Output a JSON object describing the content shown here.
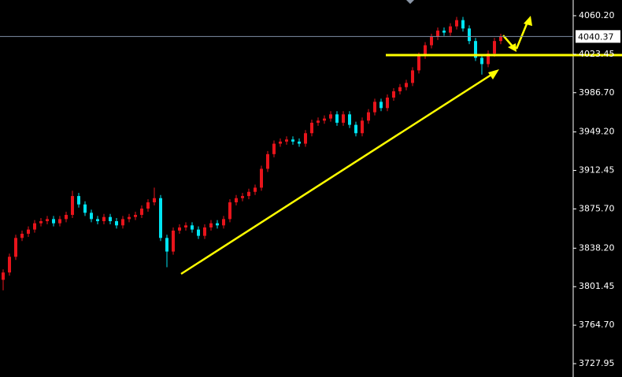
{
  "chart_data": {
    "type": "candlestick",
    "up_color": "#e8141b",
    "down_color": "#00e4f2",
    "open": [
      3808,
      3815,
      3830,
      3848,
      3852,
      3856,
      3862,
      3864,
      3866,
      3862,
      3866,
      3870,
      3888,
      3880,
      3872,
      3866,
      3864,
      3868,
      3864,
      3860,
      3866,
      3868,
      3870,
      3876,
      3882,
      3886,
      3848,
      3835,
      3855,
      3858,
      3860,
      3856,
      3850,
      3858,
      3862,
      3860,
      3866,
      3882,
      3886,
      3888,
      3892,
      3896,
      3914,
      3928,
      3938,
      3940,
      3942,
      3940,
      3938,
      3948,
      3958,
      3960,
      3962,
      3966,
      3958,
      3966,
      3956,
      3948,
      3960,
      3968,
      3978,
      3972,
      3982,
      3988,
      3992,
      3996,
      4008,
      4022,
      4032,
      4040,
      4046,
      4044,
      4050,
      4056,
      4048,
      4036,
      4020,
      4014,
      4024,
      4036
    ],
    "high": [
      3818,
      3833,
      3851,
      3855,
      3859,
      3865,
      3867,
      3869,
      3869,
      3869,
      3873,
      3893,
      3891,
      3883,
      3875,
      3869,
      3871,
      3871,
      3867,
      3869,
      3871,
      3873,
      3879,
      3885,
      3896,
      3889,
      3851,
      3858,
      3861,
      3863,
      3863,
      3859,
      3861,
      3865,
      3865,
      3869,
      3885,
      3889,
      3891,
      3895,
      3899,
      3917,
      3931,
      3941,
      3943,
      3945,
      3945,
      3943,
      3951,
      3961,
      3963,
      3965,
      3969,
      3969,
      3969,
      3969,
      3959,
      3963,
      3971,
      3981,
      3981,
      3985,
      3991,
      3995,
      3999,
      4011,
      4025,
      4035,
      4043,
      4049,
      4049,
      4053,
      4059,
      4059,
      4051,
      4039,
      4023,
      4027,
      4039,
      4043
    ],
    "low": [
      3798,
      3812,
      3827,
      3845,
      3849,
      3853,
      3859,
      3861,
      3859,
      3859,
      3863,
      3867,
      3877,
      3869,
      3863,
      3861,
      3861,
      3861,
      3857,
      3857,
      3863,
      3865,
      3867,
      3873,
      3879,
      3845,
      3820,
      3832,
      3852,
      3855,
      3853,
      3847,
      3847,
      3855,
      3857,
      3857,
      3863,
      3879,
      3883,
      3885,
      3889,
      3893,
      3911,
      3925,
      3935,
      3937,
      3937,
      3935,
      3935,
      3945,
      3955,
      3957,
      3959,
      3955,
      3955,
      3953,
      3945,
      3945,
      3957,
      3965,
      3969,
      3969,
      3979,
      3985,
      3989,
      3993,
      4005,
      4019,
      4029,
      4037,
      4041,
      4041,
      4047,
      4045,
      4033,
      4017,
      4004,
      4011,
      4021,
      4033
    ],
    "close": [
      3815,
      3830,
      3848,
      3852,
      3856,
      3862,
      3864,
      3866,
      3862,
      3866,
      3870,
      3888,
      3880,
      3872,
      3866,
      3864,
      3868,
      3864,
      3860,
      3866,
      3868,
      3870,
      3876,
      3882,
      3886,
      3848,
      3835,
      3855,
      3858,
      3860,
      3856,
      3850,
      3858,
      3862,
      3860,
      3866,
      3882,
      3886,
      3888,
      3892,
      3896,
      3914,
      3928,
      3938,
      3940,
      3942,
      3940,
      3938,
      3948,
      3958,
      3960,
      3962,
      3966,
      3958,
      3966,
      3956,
      3948,
      3960,
      3968,
      3978,
      3972,
      3982,
      3988,
      3992,
      3996,
      4008,
      4022,
      4032,
      4040,
      4046,
      4044,
      4050,
      4056,
      4048,
      4036,
      4020,
      4014,
      4024,
      4036,
      4040.37
    ],
    "last_price": {
      "value": 4040.37,
      "label": "4040.37"
    },
    "ylim": [
      3715.2,
      4075.2
    ],
    "yticks": [
      {
        "value": 4060.2,
        "label": "4060.20"
      },
      {
        "value": 4023.45,
        "label": "4023.45"
      },
      {
        "value": 3986.7,
        "label": "3986.70"
      },
      {
        "value": 3949.2,
        "label": "3949.20"
      },
      {
        "value": 3912.45,
        "label": "3912.45"
      },
      {
        "value": 3875.7,
        "label": "3875.70"
      },
      {
        "value": 3838.2,
        "label": "3838.20"
      },
      {
        "value": 3801.45,
        "label": "3801.45"
      },
      {
        "value": 3764.7,
        "label": "3764.70"
      },
      {
        "value": 3727.95,
        "label": "3727.95"
      }
    ]
  }
}
